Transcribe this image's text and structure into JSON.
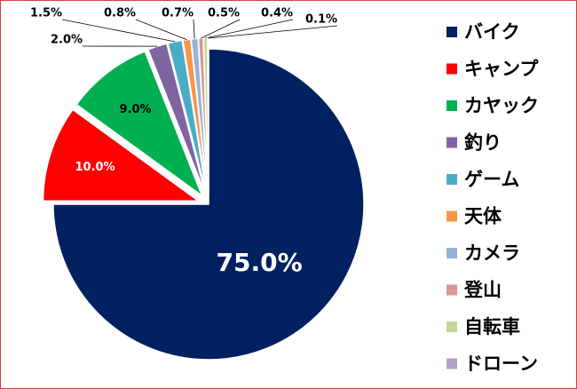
{
  "chart_data": {
    "type": "pie",
    "categories": [
      "バイク",
      "キャンプ",
      "カヤック",
      "釣り",
      "ゲーム",
      "天体",
      "カメラ",
      "登山",
      "自転車",
      "ドローン"
    ],
    "values": [
      75,
      10,
      9,
      2,
      1.5,
      0.8,
      0.7,
      0.5,
      0.4,
      0.1
    ],
    "value_labels": [
      "75.0%",
      "10.0%",
      "9.0%",
      "2.0%",
      "1.5%",
      "0.8%",
      "0.7%",
      "0.5%",
      "0.4%",
      "0.1%"
    ],
    "colors": [
      "#002060",
      "#ff0000",
      "#00b050",
      "#8064a2",
      "#4bacc6",
      "#f79646",
      "#95b3d7",
      "#d99694",
      "#c3d69b",
      "#b3a2c7"
    ],
    "legend": "right"
  }
}
